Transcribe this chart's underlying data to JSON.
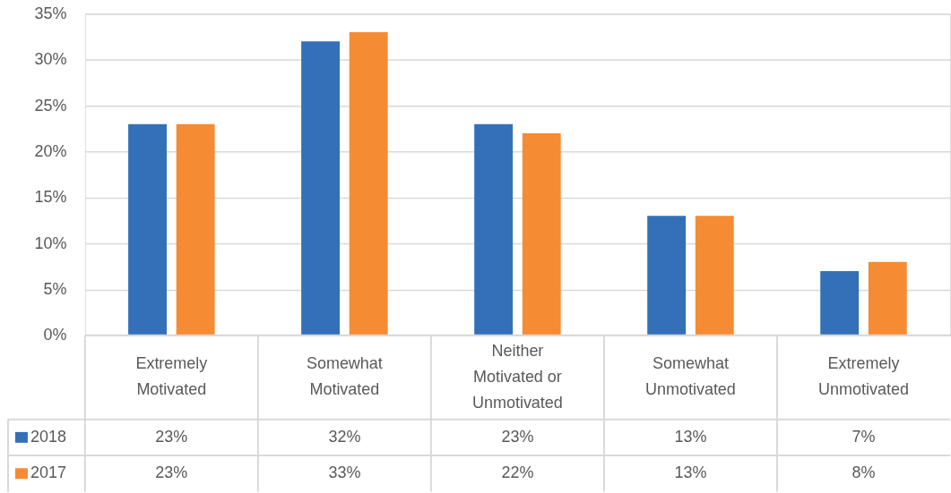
{
  "chart_data": {
    "type": "bar",
    "categories": [
      "Extremely Motivated",
      "Somewhat Motivated",
      "Neither Motivated or Unmotivated",
      "Somewhat Unmotivated",
      "Extremely Unmotivated"
    ],
    "series": [
      {
        "name": "2018",
        "color": "#3370b8",
        "values": [
          23,
          32,
          23,
          13,
          7
        ],
        "value_labels": [
          "23%",
          "32%",
          "23%",
          "13%",
          "7%"
        ]
      },
      {
        "name": "2017",
        "color": "#f58b32",
        "values": [
          23,
          33,
          22,
          13,
          8
        ],
        "value_labels": [
          "23%",
          "33%",
          "22%",
          "13%",
          "8%"
        ]
      }
    ],
    "ylim": [
      0,
      35
    ],
    "yticks": [
      {
        "value": 0,
        "label": "0%"
      },
      {
        "value": 5,
        "label": "5%"
      },
      {
        "value": 10,
        "label": "10%"
      },
      {
        "value": 15,
        "label": "15%"
      },
      {
        "value": 20,
        "label": "20%"
      },
      {
        "value": 25,
        "label": "25%"
      },
      {
        "value": 30,
        "label": "30%"
      },
      {
        "value": 35,
        "label": "35%"
      }
    ],
    "grid": "y",
    "legend": "bottom"
  }
}
